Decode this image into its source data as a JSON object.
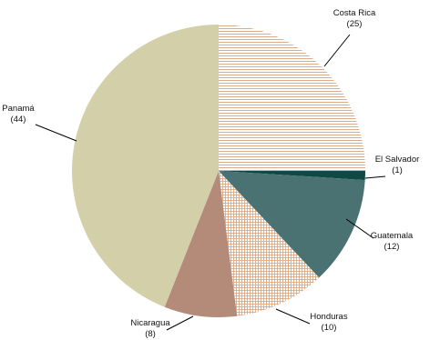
{
  "chart_data": {
    "type": "pie",
    "title": "",
    "slices": [
      {
        "label": "Costa Rica",
        "value": 25,
        "value_label": "(25)",
        "color": "#d9a27a",
        "pattern": "horizontal-lines"
      },
      {
        "label": "El Salvador",
        "value": 1,
        "value_label": "(1)",
        "color": "#0e4a44",
        "pattern": "solid"
      },
      {
        "label": "Guatemala",
        "value": 12,
        "value_label": "(12)",
        "color": "#4a7272",
        "pattern": "solid"
      },
      {
        "label": "Honduras",
        "value": 10,
        "value_label": "(10)",
        "color": "#d9a27a",
        "pattern": "grid"
      },
      {
        "label": "Nicaragua",
        "value": 8,
        "value_label": "(8)",
        "color": "#b48a78",
        "pattern": "solid"
      },
      {
        "label": "Panamá",
        "value": 44,
        "value_label": "(44)",
        "color": "#d3cfa8",
        "pattern": "solid"
      }
    ],
    "start": "12 o'clock",
    "direction": "clockwise",
    "legend": "none"
  }
}
